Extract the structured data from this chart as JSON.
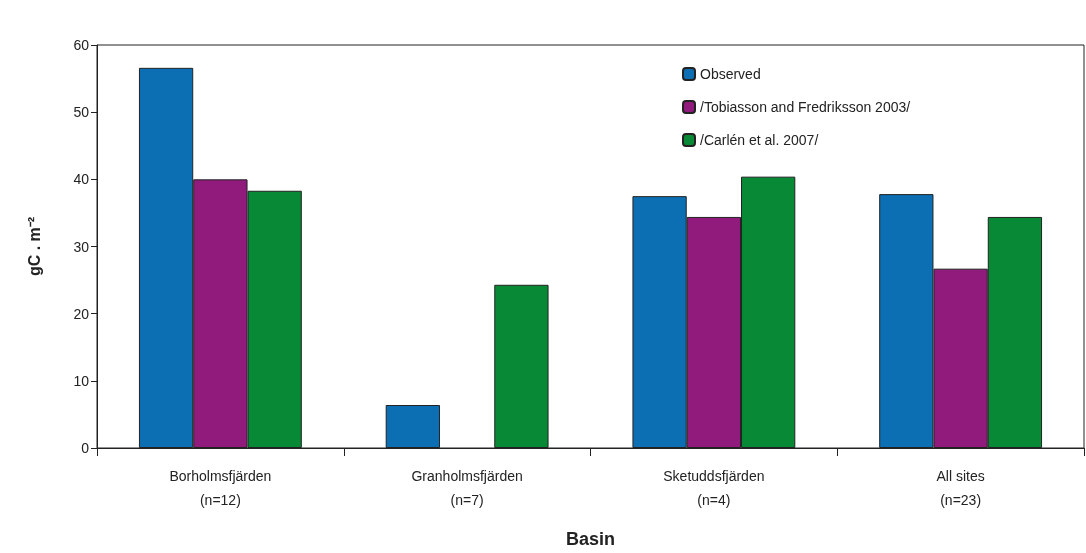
{
  "chart_data": {
    "type": "bar",
    "xlabel": "Basin",
    "ylabel": "gC . m⁻²",
    "categories": [
      "Borholmsfjärden\n(n=12)",
      "Granholmsfjärden\n(n=7)",
      "Sketuddsfjärden\n(n=4)",
      "All sites\n(n=23)"
    ],
    "series": [
      {
        "name": "Observed",
        "color": "#0c6fb3",
        "values": [
          56.6,
          6.4,
          37.5,
          37.8
        ]
      },
      {
        "name": "/Tobiasson and Fredriksson 2003/",
        "color": "#901b7c",
        "values": [
          40.0,
          null,
          34.4,
          26.7
        ]
      },
      {
        "name": "/Carlén et al. 2007/",
        "color": "#078935",
        "values": [
          38.3,
          24.3,
          40.4,
          34.4
        ]
      }
    ],
    "ylim": [
      0,
      60
    ],
    "yticks": [
      0,
      10,
      20,
      30,
      40,
      50,
      60
    ],
    "grid": false,
    "legend": "top right"
  }
}
